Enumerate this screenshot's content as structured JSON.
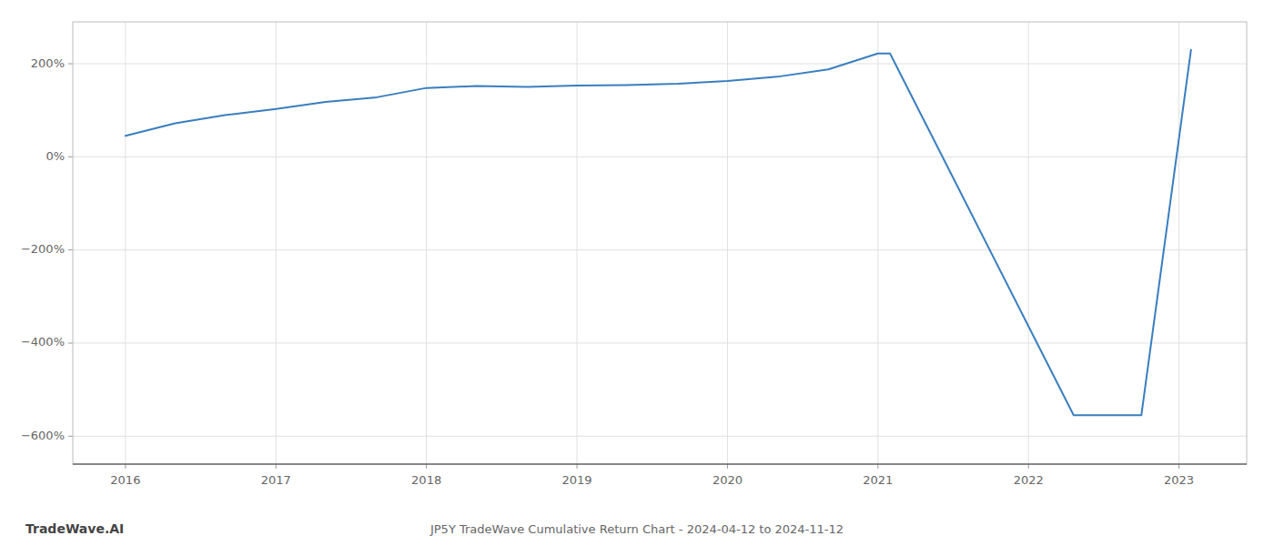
{
  "chart_data": {
    "type": "line",
    "title": "JP5Y TradeWave Cumulative Return Chart - 2024-04-12 to 2024-11-12",
    "annotations": [
      {
        "text": "TradeWave.AI"
      }
    ],
    "x": [
      2016.0,
      2016.33,
      2016.67,
      2017.0,
      2017.33,
      2017.67,
      2018.0,
      2018.33,
      2018.67,
      2019.0,
      2019.33,
      2019.67,
      2020.0,
      2020.33,
      2020.67,
      2021.0,
      2021.08,
      2022.3,
      2022.75,
      2023.08
    ],
    "values": [
      45,
      72,
      90,
      103,
      118,
      128,
      148,
      152,
      150,
      153,
      154,
      157,
      163,
      172,
      188,
      222,
      222,
      -555,
      -555,
      230
    ],
    "color": "#3a7ebf",
    "xlim": [
      2015.65,
      2023.45
    ],
    "xticks": [
      2016,
      2017,
      2018,
      2019,
      2020,
      2021,
      2022,
      2023
    ],
    "ylim": [
      -660,
      290
    ],
    "yticks": [
      {
        "value": 200,
        "label": "200%"
      },
      {
        "value": 0,
        "label": "0%"
      },
      {
        "value": -200,
        "label": "−200%"
      },
      {
        "value": -400,
        "label": "−400%"
      },
      {
        "value": -600,
        "label": "−600%"
      }
    ],
    "grid": true
  }
}
